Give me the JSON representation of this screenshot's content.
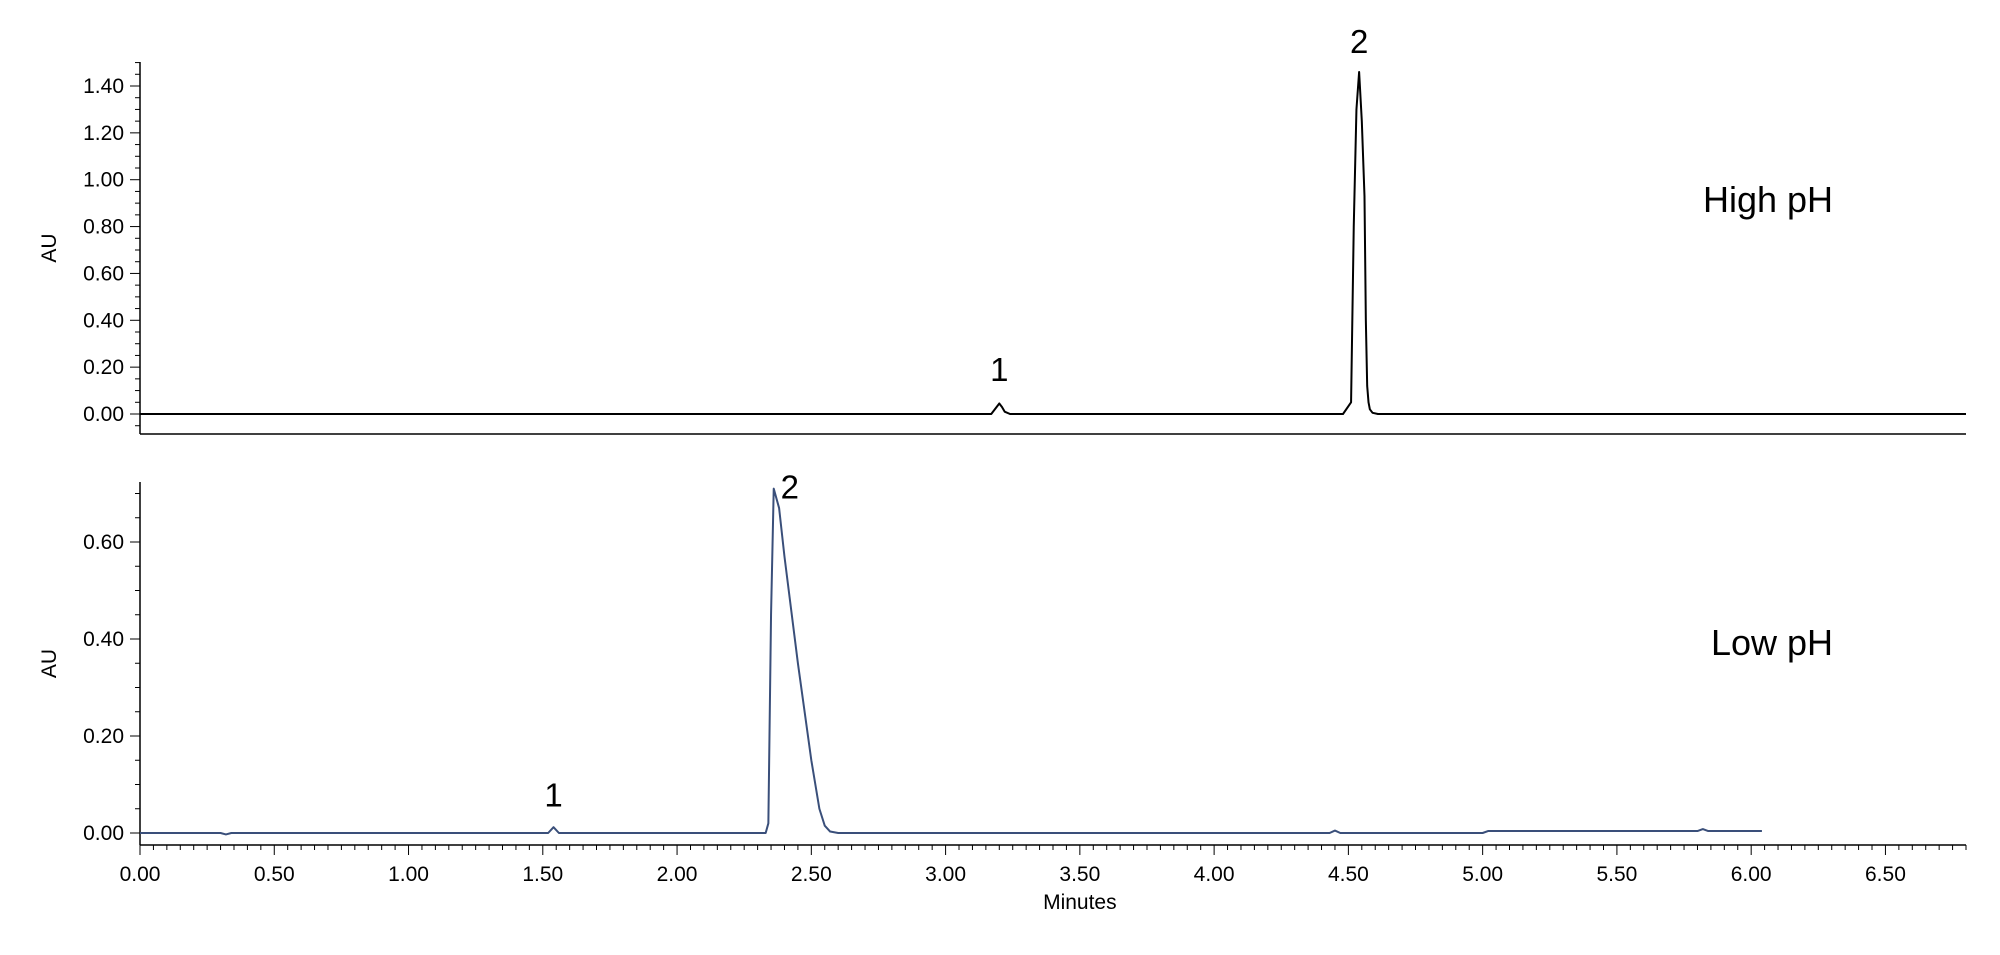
{
  "chart_data": [
    {
      "type": "line",
      "panel_label": "High pH",
      "ylabel": "AU",
      "xlabel": "",
      "xlim": [
        0.0,
        6.8
      ],
      "ylim": [
        -0.08,
        1.5
      ],
      "y_ticks": [
        0.0,
        0.2,
        0.4,
        0.6,
        0.8,
        1.0,
        1.2,
        1.4
      ],
      "y_tick_labels": [
        "0.00",
        "0.20",
        "0.40",
        "0.60",
        "0.80",
        "1.00",
        "1.20",
        "1.40"
      ],
      "line_color": "#000000",
      "grid": false,
      "peak_labels": [
        {
          "text": "1",
          "x": 3.2,
          "y": 0.14
        },
        {
          "text": "2",
          "x": 4.54,
          "y": 1.54
        }
      ],
      "series": [
        {
          "x": [
            0.0,
            3.17,
            3.19,
            3.2,
            3.21,
            3.22,
            3.24,
            4.48,
            4.51,
            4.52,
            4.53,
            4.54,
            4.55,
            4.56,
            4.565,
            4.57,
            4.575,
            4.58,
            4.59,
            4.61,
            6.8
          ],
          "y": [
            0.0,
            0.0,
            0.03,
            0.045,
            0.03,
            0.01,
            0.0,
            0.0,
            0.05,
            0.8,
            1.3,
            1.46,
            1.25,
            0.93,
            0.4,
            0.12,
            0.05,
            0.02,
            0.005,
            0.0,
            0.0
          ]
        }
      ]
    },
    {
      "type": "line",
      "panel_label": "Low pH",
      "ylabel": "AU",
      "xlabel": "Minutes",
      "xlim": [
        0.0,
        6.8
      ],
      "ylim": [
        -0.03,
        0.72
      ],
      "y_ticks": [
        0.0,
        0.2,
        0.4,
        0.6
      ],
      "y_tick_labels": [
        "0.00",
        "0.20",
        "0.40",
        "0.60"
      ],
      "x_ticks": [
        0.0,
        0.5,
        1.0,
        1.5,
        2.0,
        2.5,
        3.0,
        3.5,
        4.0,
        4.5,
        5.0,
        5.5,
        6.0,
        6.5
      ],
      "x_tick_labels": [
        "0.00",
        "0.50",
        "1.00",
        "1.50",
        "2.00",
        "2.50",
        "3.00",
        "3.50",
        "4.00",
        "4.50",
        "5.00",
        "5.50",
        "6.00",
        "6.50"
      ],
      "line_color": "#3a4f7a",
      "grid": false,
      "peak_labels": [
        {
          "text": "1",
          "x": 1.54,
          "y": 0.055
        },
        {
          "text": "2",
          "x": 2.42,
          "y": 0.69
        }
      ],
      "series": [
        {
          "x": [
            0.0,
            0.3,
            0.32,
            0.34,
            1.52,
            1.54,
            1.56,
            2.33,
            2.34,
            2.35,
            2.36,
            2.38,
            2.4,
            2.45,
            2.5,
            2.53,
            2.55,
            2.57,
            2.6,
            4.43,
            4.45,
            4.47,
            5.0,
            5.02,
            5.8,
            5.82,
            5.84,
            6.04
          ],
          "y": [
            0.0,
            0.0,
            -0.003,
            0.0,
            0.0,
            0.012,
            0.0,
            0.0,
            0.02,
            0.45,
            0.71,
            0.67,
            0.57,
            0.35,
            0.15,
            0.05,
            0.015,
            0.003,
            0.0,
            0.0,
            0.005,
            0.0,
            0.0,
            0.004,
            0.004,
            0.008,
            0.004,
            0.004
          ]
        }
      ]
    }
  ]
}
